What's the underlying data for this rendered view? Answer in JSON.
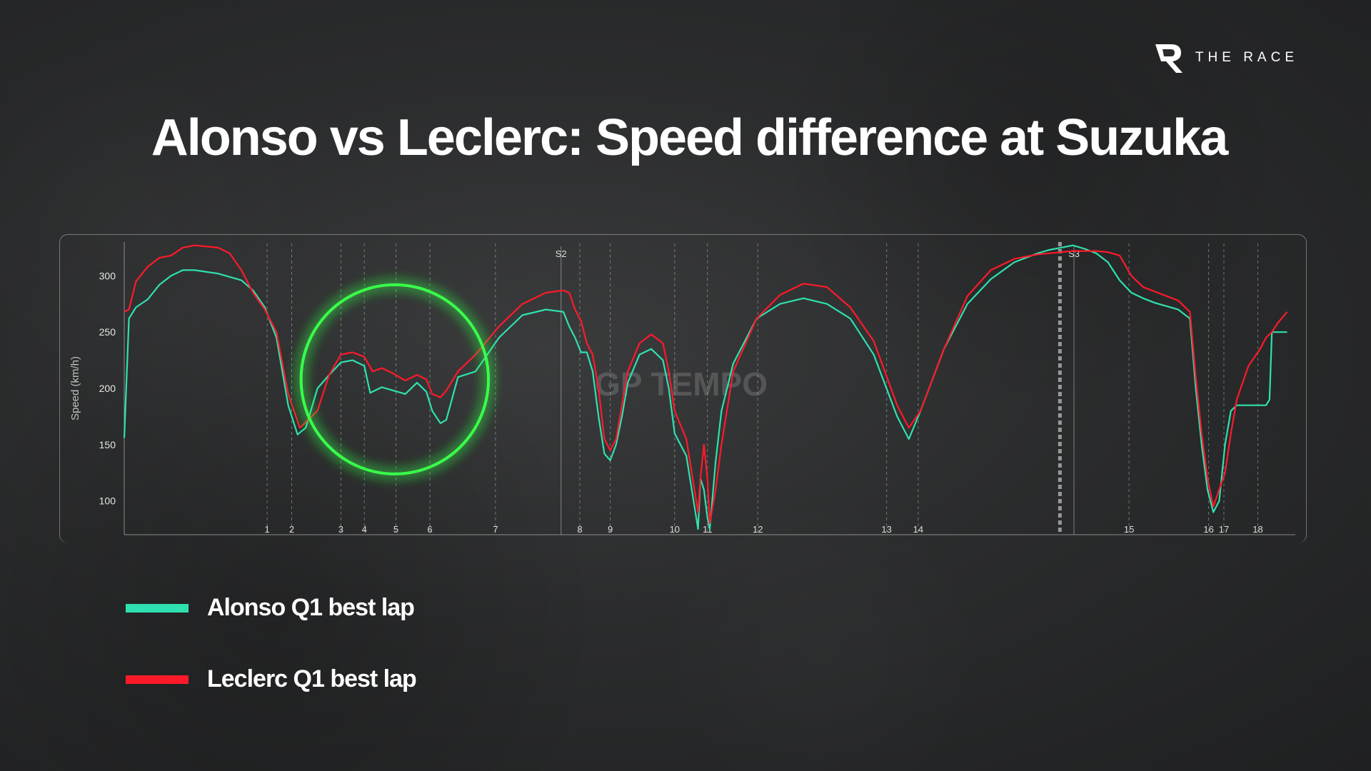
{
  "brand": {
    "name": "THE RACE"
  },
  "title": "Alonso vs Leclerc: Speed difference at Suzuka",
  "watermark": "GP TEMPO",
  "legend": [
    {
      "label": "Alonso Q1 best lap",
      "color": "#2fe0b0"
    },
    {
      "label": "Leclerc Q1 best lap",
      "color": "#ff1a2a"
    }
  ],
  "highlight_color": "#39ff4a",
  "chart_data": {
    "type": "line",
    "ylabel": "Speed (km/h)",
    "xlabel": "",
    "y_ticks": [
      100,
      150,
      200,
      250,
      300
    ],
    "ylim": [
      70,
      330
    ],
    "xlim": [
      0,
      1000
    ],
    "grid": "vertical dashed corner markers",
    "corners": [
      {
        "label": "1",
        "x": 122
      },
      {
        "label": "2",
        "x": 143
      },
      {
        "label": "3",
        "x": 185
      },
      {
        "label": "4",
        "x": 205
      },
      {
        "label": "5",
        "x": 232
      },
      {
        "label": "6",
        "x": 261
      },
      {
        "label": "7",
        "x": 317
      },
      {
        "label": "8",
        "x": 389
      },
      {
        "label": "9",
        "x": 415
      },
      {
        "label": "10",
        "x": 470
      },
      {
        "label": "11",
        "x": 498
      },
      {
        "label": "12",
        "x": 541
      },
      {
        "label": "13",
        "x": 651
      },
      {
        "label": "14",
        "x": 678
      },
      {
        "label": "15",
        "x": 858
      },
      {
        "label": "16",
        "x": 926
      },
      {
        "label": "17",
        "x": 939
      },
      {
        "label": "18",
        "x": 968
      }
    ],
    "sectors": [
      {
        "label": "S2",
        "x": 373
      },
      {
        "label": "S3",
        "x": 811
      }
    ],
    "finish_line_x": 799,
    "highlight_region": {
      "x_center": 231,
      "y_center": 208,
      "x_radius": 80,
      "y_radius": 84
    },
    "series": [
      {
        "name": "Alonso Q1 best lap",
        "color": "#2fe0b0",
        "x": [
          0,
          4,
          10,
          20,
          30,
          40,
          50,
          60,
          80,
          100,
          110,
          120,
          130,
          140,
          148,
          155,
          165,
          175,
          185,
          195,
          205,
          210,
          220,
          230,
          240,
          250,
          258,
          263,
          270,
          275,
          285,
          300,
          320,
          340,
          360,
          375,
          380,
          385,
          390,
          395,
          400,
          405,
          410,
          415,
          420,
          425,
          430,
          440,
          450,
          460,
          465,
          470,
          480,
          490,
          492,
          495,
          498,
          500,
          505,
          510,
          520,
          540,
          560,
          580,
          600,
          620,
          640,
          660,
          670,
          680,
          700,
          720,
          740,
          760,
          780,
          790,
          800,
          810,
          820,
          830,
          840,
          850,
          860,
          870,
          880,
          900,
          910,
          915,
          920,
          925,
          930,
          935,
          940,
          945,
          950,
          960,
          970,
          975,
          978,
          980,
          983,
          988,
          993
        ],
        "y": [
          156,
          262,
          272,
          279,
          292,
          300,
          305,
          305,
          302,
          296,
          287,
          272,
          245,
          185,
          159,
          165,
          200,
          212,
          223,
          225,
          220,
          196,
          201,
          198,
          195,
          205,
          197,
          180,
          169,
          172,
          210,
          215,
          245,
          265,
          270,
          268,
          255,
          245,
          232,
          232,
          215,
          175,
          142,
          136,
          150,
          175,
          205,
          230,
          235,
          225,
          200,
          160,
          140,
          75,
          120,
          110,
          85,
          75,
          135,
          180,
          222,
          262,
          275,
          280,
          275,
          262,
          230,
          175,
          155,
          180,
          235,
          275,
          297,
          312,
          320,
          323,
          325,
          327,
          324,
          320,
          312,
          296,
          285,
          280,
          276,
          270,
          262,
          200,
          150,
          110,
          90,
          100,
          150,
          180,
          185,
          185,
          185,
          185,
          190,
          250,
          250,
          250,
          250
        ]
      },
      {
        "name": "Leclerc Q1 best lap",
        "color": "#ff1a2a",
        "x": [
          0,
          4,
          10,
          20,
          30,
          40,
          50,
          60,
          80,
          90,
          100,
          110,
          120,
          130,
          140,
          150,
          165,
          175,
          185,
          195,
          205,
          212,
          220,
          230,
          240,
          250,
          258,
          263,
          270,
          275,
          285,
          300,
          320,
          340,
          360,
          375,
          380,
          385,
          390,
          395,
          400,
          405,
          410,
          415,
          420,
          425,
          430,
          440,
          450,
          460,
          465,
          470,
          480,
          490,
          492,
          495,
          498,
          500,
          505,
          510,
          520,
          540,
          560,
          580,
          600,
          620,
          640,
          660,
          670,
          680,
          700,
          720,
          740,
          760,
          780,
          790,
          800,
          810,
          820,
          830,
          840,
          850,
          860,
          870,
          880,
          900,
          910,
          915,
          920,
          925,
          930,
          935,
          940,
          945,
          950,
          960,
          970,
          975,
          980,
          985,
          993
        ],
        "y": [
          268,
          270,
          295,
          308,
          316,
          318,
          325,
          327,
          325,
          320,
          305,
          285,
          270,
          250,
          195,
          165,
          180,
          212,
          230,
          232,
          228,
          215,
          218,
          213,
          207,
          212,
          208,
          195,
          192,
          198,
          215,
          230,
          255,
          275,
          285,
          287,
          285,
          270,
          260,
          240,
          230,
          200,
          155,
          145,
          155,
          185,
          215,
          240,
          248,
          240,
          215,
          180,
          155,
          90,
          120,
          150,
          120,
          80,
          110,
          150,
          215,
          262,
          283,
          293,
          290,
          272,
          242,
          185,
          165,
          180,
          235,
          282,
          305,
          315,
          319,
          320,
          321,
          322,
          322,
          322,
          321,
          318,
          300,
          290,
          286,
          278,
          268,
          210,
          160,
          120,
          95,
          110,
          125,
          160,
          190,
          220,
          235,
          245,
          250,
          258,
          268
        ]
      }
    ]
  }
}
